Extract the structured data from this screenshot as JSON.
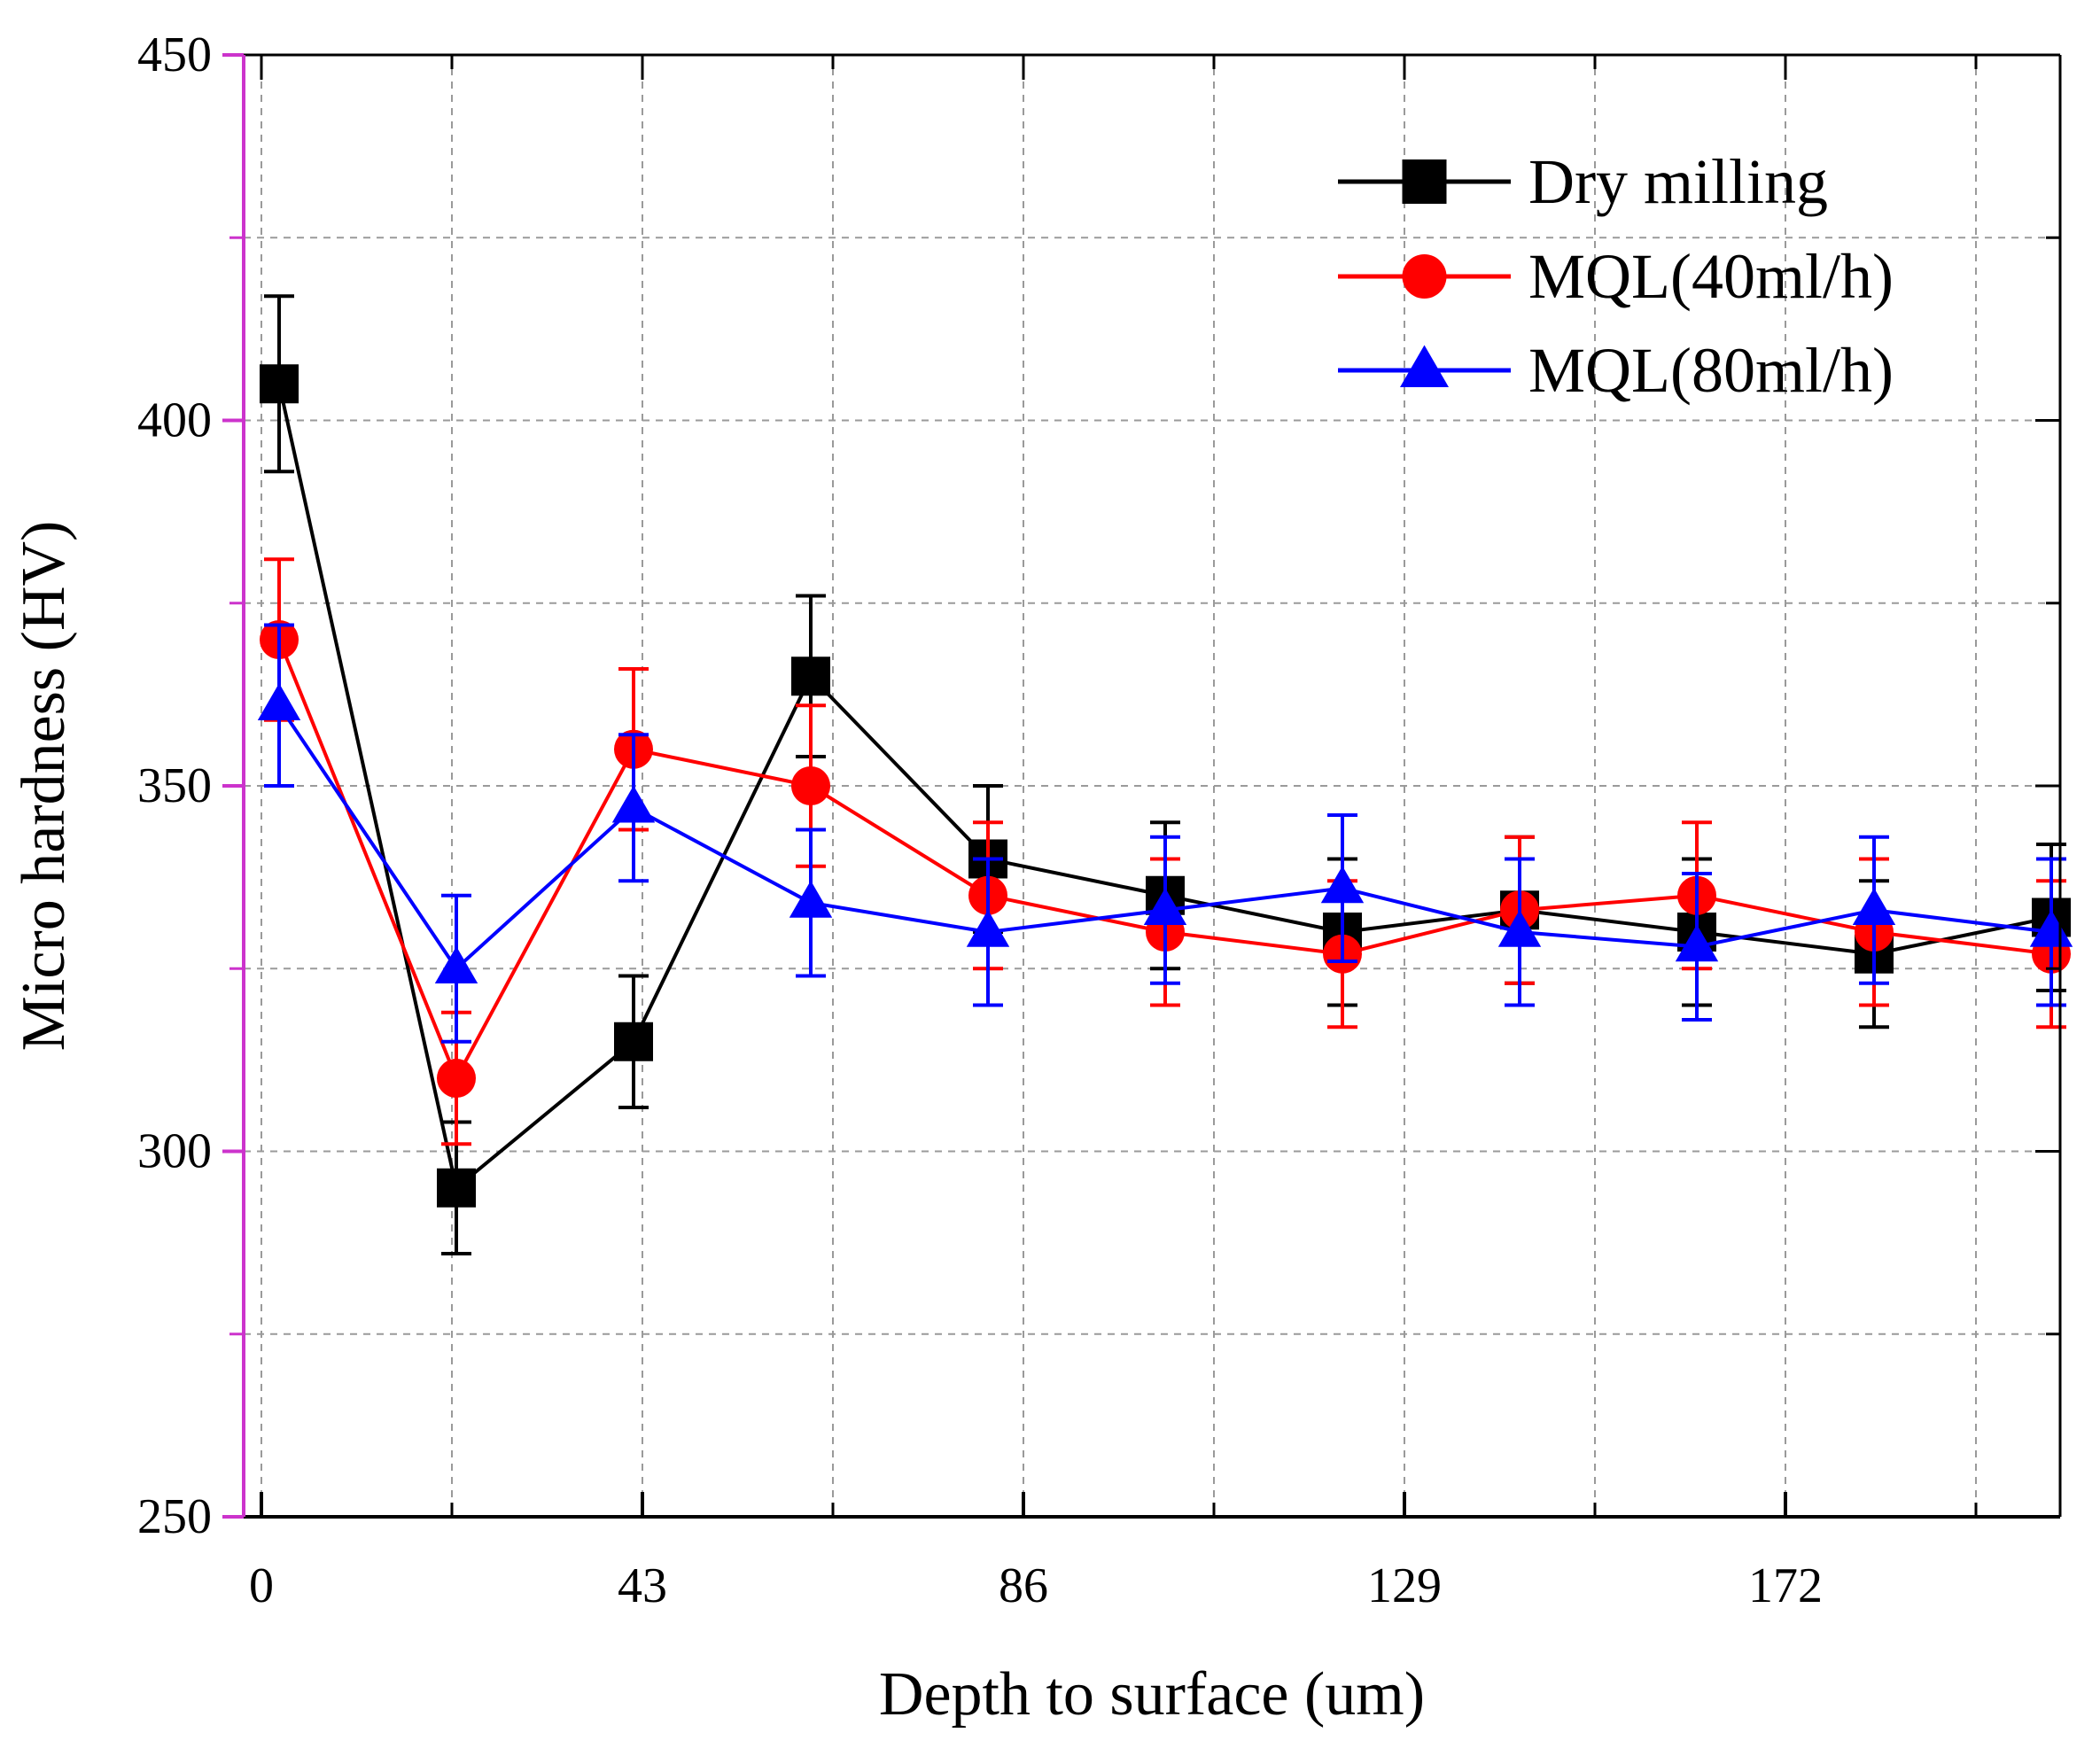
{
  "chart_data": {
    "type": "line",
    "xlabel": "Depth to surface (um)",
    "ylabel": "Micro hardness (HV)",
    "xlim": [
      -2,
      203
    ],
    "ylim": [
      250,
      450
    ],
    "xticks": [
      0,
      43,
      86,
      129,
      172
    ],
    "xtick_labels": [
      "0",
      "43",
      "86",
      "129",
      "172"
    ],
    "xminor_ticks": [
      21.5,
      64.5,
      107.5,
      150.5,
      193.5
    ],
    "yticks": [
      250,
      300,
      350,
      400,
      450
    ],
    "ytick_labels": [
      "250",
      "300",
      "350",
      "400",
      "450"
    ],
    "yminor_ticks": [
      275,
      325,
      375,
      425
    ],
    "grid": true,
    "legend_position": "top-right",
    "series": [
      {
        "name": "Dry milling",
        "color": "#000000",
        "marker": "square",
        "x": [
          2,
          22,
          42,
          62,
          82,
          102,
          122,
          142,
          162,
          182,
          202
        ],
        "y": [
          405,
          295,
          315,
          365,
          340,
          335,
          330,
          333,
          330,
          327,
          332
        ],
        "err": [
          12,
          9,
          9,
          11,
          10,
          10,
          10,
          10,
          10,
          10,
          10
        ]
      },
      {
        "name": "MQL(40ml/h)",
        "color": "#ff0000",
        "marker": "circle",
        "x": [
          2,
          22,
          42,
          62,
          82,
          102,
          122,
          142,
          162,
          182,
          202
        ],
        "y": [
          370,
          310,
          355,
          350,
          335,
          330,
          327,
          333,
          335,
          330,
          327
        ],
        "err": [
          11,
          9,
          11,
          11,
          10,
          10,
          10,
          10,
          10,
          10,
          10
        ]
      },
      {
        "name": "MQL(80ml/h)",
        "color": "#0000ff",
        "marker": "triangle",
        "x": [
          2,
          22,
          42,
          62,
          82,
          102,
          122,
          142,
          162,
          182,
          202
        ],
        "y": [
          361,
          325,
          347,
          334,
          330,
          333,
          336,
          330,
          328,
          333,
          330
        ],
        "err": [
          11,
          10,
          10,
          10,
          10,
          10,
          10,
          10,
          10,
          10,
          10
        ]
      }
    ]
  }
}
